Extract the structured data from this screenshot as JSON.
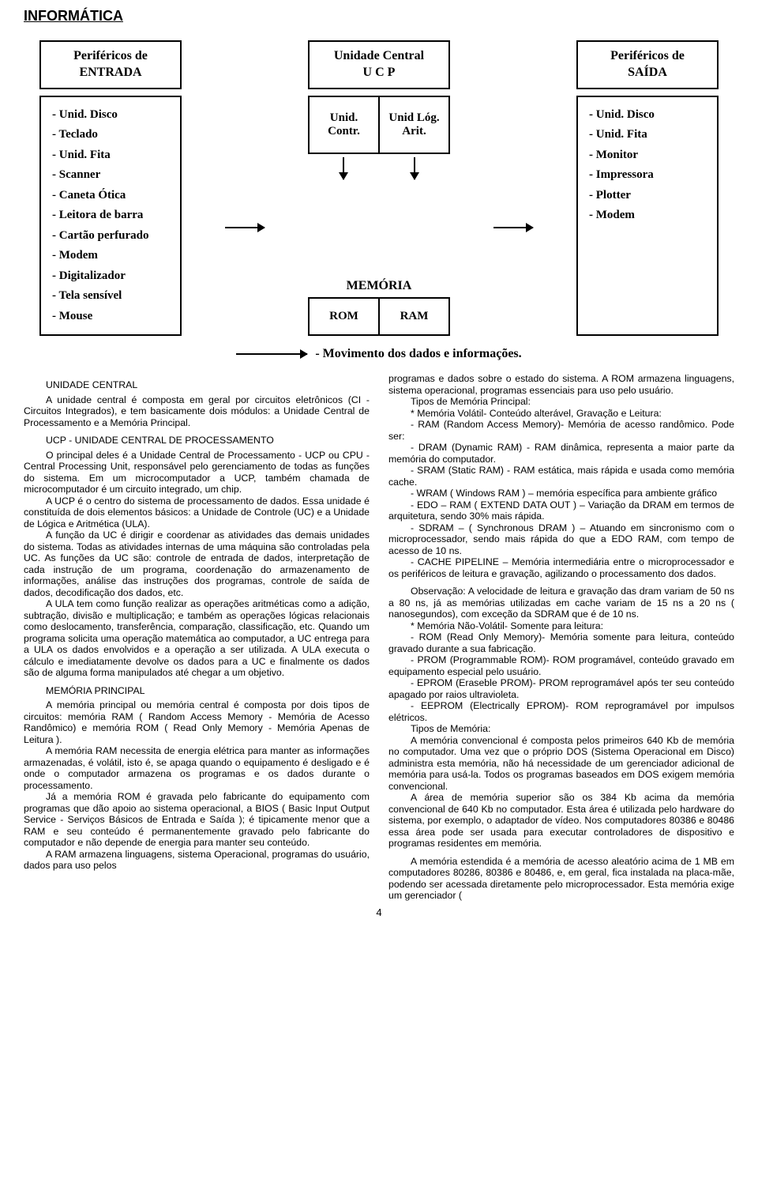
{
  "title": "INFORMÁTICA",
  "diagram": {
    "entrada_box": {
      "l1": "Periféricos de",
      "l2": "ENTRADA"
    },
    "ucp_box": {
      "l1": "Unidade Central",
      "l2": "U C P"
    },
    "saida_box": {
      "l1": "Periféricos de",
      "l2": "SAÍDA"
    },
    "entrada_items": [
      "- Unid. Disco",
      "- Teclado",
      "- Unid. Fita",
      "- Scanner",
      "- Caneta Ótica",
      "- Leitora de barra",
      "- Cartão perfurado",
      "- Modem",
      "- Digitalizador",
      "- Tela sensível",
      "-    Mouse"
    ],
    "ucp_sub": {
      "left": "Unid. Contr.",
      "right": "Unid Lóg. Arit."
    },
    "memoria_label": "MEMÓRIA",
    "memoria": {
      "rom": "ROM",
      "ram": "RAM"
    },
    "saida_items": [
      "- Unid. Disco",
      "   - Unid. Fita",
      "  - Monitor",
      "- Impressora",
      "- Plotter",
      "- Modem"
    ],
    "legend": "- Movimento dos dados e informações."
  },
  "col_left": {
    "h1": "UNIDADE CENTRAL",
    "p1": "A unidade central é composta em geral por circuitos eletrônicos (CI - Circuitos Integrados), e tem basicamente dois módulos: a Unidade Central de Processamento e a Memória Principal.",
    "h2": "UCP - UNIDADE CENTRAL DE PROCESSAMENTO",
    "p2": "O principal deles é a Unidade Central de Processamento - UCP ou CPU - Central Processing Unit, responsável pelo gerenciamento de todas as funções do sistema. Em um microcomputador a UCP, também chamada de microcomputador é um circuito integrado, um chip.",
    "p3": "A UCP é o centro do sistema de processamento de dados. Essa unidade é constituída de dois elementos básicos: a Unidade de Controle (UC) e a Unidade de Lógica e Aritmética (ULA).",
    "p4": "A função da UC é dirigir e coordenar as atividades das demais unidades do sistema. Todas as atividades internas de uma máquina são controladas pela UC. As funções da UC são: controle de entrada de dados, interpretação de cada instrução de um programa, coordenação do armazenamento de informações, análise das instruções dos programas, controle de saída de dados, decodificação dos dados, etc.",
    "p5": "A ULA tem como função realizar as operações aritméticas como a adição, subtração, divisão e multiplicação; e também as operações lógicas relacionais como deslocamento, transferência, comparação, classificação, etc. Quando um programa solicita uma operação matemática ao computador, a UC entrega para a ULA os dados envolvidos e a operação a ser utilizada. A ULA executa o cálculo e imediatamente devolve os dados para a UC e finalmente os dados são de alguma forma manipulados até chegar a um objetivo.",
    "h3": "MEMÓRIA PRINCIPAL",
    "p6": "A memória principal ou memória central é composta por dois tipos de circuitos: memória RAM ( Random Access Memory - Memória de Acesso Randômico) e memória ROM ( Read Only Memory - Memória Apenas de Leitura ).",
    "p7": "A memória RAM necessita de energia elétrica para manter as informações armazenadas, é volátil, isto é, se apaga quando o equipamento é desligado e é onde o computador armazena os programas e os dados durante o processamento.",
    "p8": "Já a memória ROM é gravada pelo fabricante do equipamento com programas que dão apoio ao sistema operacional, a BIOS ( Basic Input Output Service - Serviços Básicos de Entrada e Saída ); é tipicamente menor que a RAM e seu conteúdo é permanentemente gravado pelo fabricante do computador e não depende de energia para manter seu conteúdo.",
    "p9": "A RAM armazena linguagens, sistema Operacional, programas do usuário, dados para uso pelos"
  },
  "col_right": {
    "p1": "programas e dados sobre o estado do sistema. A ROM armazena linguagens, sistema operacional, programas essenciais para uso pelo usuário.",
    "p2": "Tipos de Memória Principal:",
    "p3": "* Memória Volátil- Conteúdo alterável, Gravação e Leitura:",
    "p4": "- RAM (Random Access Memory)- Memória de acesso randômico. Pode ser:",
    "p5": "- DRAM (Dynamic RAM) - RAM dinâmica, representa a maior parte da memória do computador.",
    "p6": "- SRAM (Static RAM) - RAM estática, mais rápida e usada como memória cache.",
    "p7": "- WRAM ( Windows RAM ) – memória específica para ambiente gráfico",
    "p8": "- EDO – RAM ( EXTEND DATA OUT ) – Variação da DRAM em termos de arquitetura, sendo 30% mais rápida.",
    "p9": "- SDRAM – ( Synchronous DRAM ) – Atuando em sincronismo com o microprocessador, sendo mais rápida do que a EDO RAM, com tempo de acesso de 10 ns.",
    "p10": "- CACHE PIPELINE – Memória intermediária entre o microprocessador e os periféricos de leitura e gravação, agilizando o processamento dos dados.",
    "p11": "Observação: A velocidade de leitura e gravação das dram variam de 50 ns a 80 ns, já as memórias utilizadas em cache variam de 15 ns a 20 ns ( nanosegundos), com exceção da SDRAM que é de 10 ns.",
    "p12": "* Memória Não-Volátil- Somente para leitura:",
    "p13": "- ROM (Read Only Memory)- Memória somente para leitura, conteúdo gravado durante a sua fabricação.",
    "p14": "- PROM (Programmable ROM)- ROM programável, conteúdo gravado em equipamento especial pelo usuário.",
    "p15": "- EPROM (Eraseble PROM)- PROM reprogramável após ter seu conteúdo apagado por raios ultravioleta.",
    "p16": "- EEPROM (Electrically EPROM)- ROM reprogramável por impulsos elétricos.",
    "p17": "Tipos de Memória:",
    "p18": "A memória convencional é composta pelos primeiros 640 Kb de memória no computador. Uma vez que o próprio DOS (Sistema Operacional em Disco) administra esta memória, não há necessidade de um gerenciador adicional de memória para usá-la. Todos os programas baseados em DOS exigem memória convencional.",
    "p19": "A área de memória superior são os 384 Kb acima da memória convencional de 640 Kb no computador. Esta área é utilizada pelo hardware do sistema, por exemplo, o adaptador de vídeo. Nos computadores 80386 e 80486 essa área pode ser usada para executar controladores de dispositivo e programas residentes em memória.",
    "p20": "A memória estendida é a memória de acesso aleatório acima de 1 MB em computadores 80286, 80386 e 80486, e, em geral, fica instalada na placa-mãe, podendo ser acessada diretamente pelo microprocessador. Esta memória exige um gerenciador ("
  },
  "page_number": "4"
}
